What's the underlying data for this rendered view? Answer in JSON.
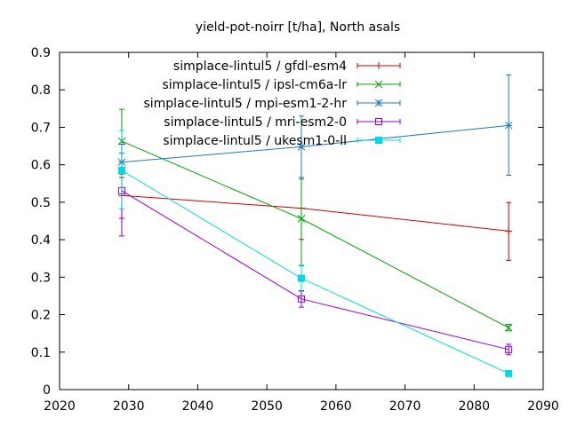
{
  "chart_data": {
    "type": "line",
    "title": "yield-pot-noirr [t/ha], North asals",
    "xlabel": "",
    "ylabel": "",
    "xlim": [
      2020,
      2090
    ],
    "ylim": [
      0,
      0.9
    ],
    "xticks": [
      "2020",
      "2030",
      "2040",
      "2050",
      "2060",
      "2070",
      "2080",
      "2090"
    ],
    "yticks": [
      "0",
      "0.1",
      "0.2",
      "0.3",
      "0.4",
      "0.5",
      "0.6",
      "0.7",
      "0.8",
      "0.9"
    ],
    "grid": false,
    "legend_position": "top-right",
    "series": [
      {
        "name": "simplace-lintul5 / gfdl-esm4",
        "color": "#cc0000",
        "marker": "plus",
        "points": [
          {
            "x": 2029,
            "y": 0.518,
            "lo": 0.457,
            "hi": 0.566
          },
          {
            "x": 2055,
            "y": 0.484,
            "lo": 0.401,
            "hi": 0.566
          },
          {
            "x": 2085,
            "y": 0.423,
            "lo": 0.345,
            "hi": 0.499
          }
        ]
      },
      {
        "name": "simplace-lintul5 / ipsl-cm6a-lr",
        "color": "#00a000",
        "marker": "x",
        "points": [
          {
            "x": 2029,
            "y": 0.663,
            "lo": 0.575,
            "hi": 0.748
          },
          {
            "x": 2055,
            "y": 0.456,
            "lo": 0.33,
            "hi": 0.566
          },
          {
            "x": 2085,
            "y": 0.165,
            "lo": 0.157,
            "hi": 0.174
          }
        ]
      },
      {
        "name": "simplace-lintul5 / mpi-esm1-2-hr",
        "color": "#1f78c0",
        "marker": "star",
        "points": [
          {
            "x": 2029,
            "y": 0.607,
            "lo": 0.584,
            "hi": 0.631
          },
          {
            "x": 2055,
            "y": 0.648,
            "lo": 0.562,
            "hi": 0.73
          },
          {
            "x": 2085,
            "y": 0.705,
            "lo": 0.572,
            "hi": 0.84
          }
        ]
      },
      {
        "name": "simplace-lintul5 / mri-esm2-0",
        "color": "#9400d3",
        "marker": "square-open",
        "points": [
          {
            "x": 2029,
            "y": 0.531,
            "lo": 0.41,
            "hi": 0.655
          },
          {
            "x": 2055,
            "y": 0.242,
            "lo": 0.22,
            "hi": 0.264
          },
          {
            "x": 2085,
            "y": 0.107,
            "lo": 0.093,
            "hi": 0.121
          }
        ]
      },
      {
        "name": "simplace-lintul5 / ukesm1-0-ll",
        "color": "#00d8e8",
        "marker": "square-filled",
        "points": [
          {
            "x": 2029,
            "y": 0.585,
            "lo": 0.482,
            "hi": 0.691
          },
          {
            "x": 2055,
            "y": 0.297,
            "lo": 0.262,
            "hi": 0.332
          },
          {
            "x": 2085,
            "y": 0.043,
            "lo": 0.043,
            "hi": 0.043
          }
        ]
      }
    ]
  }
}
